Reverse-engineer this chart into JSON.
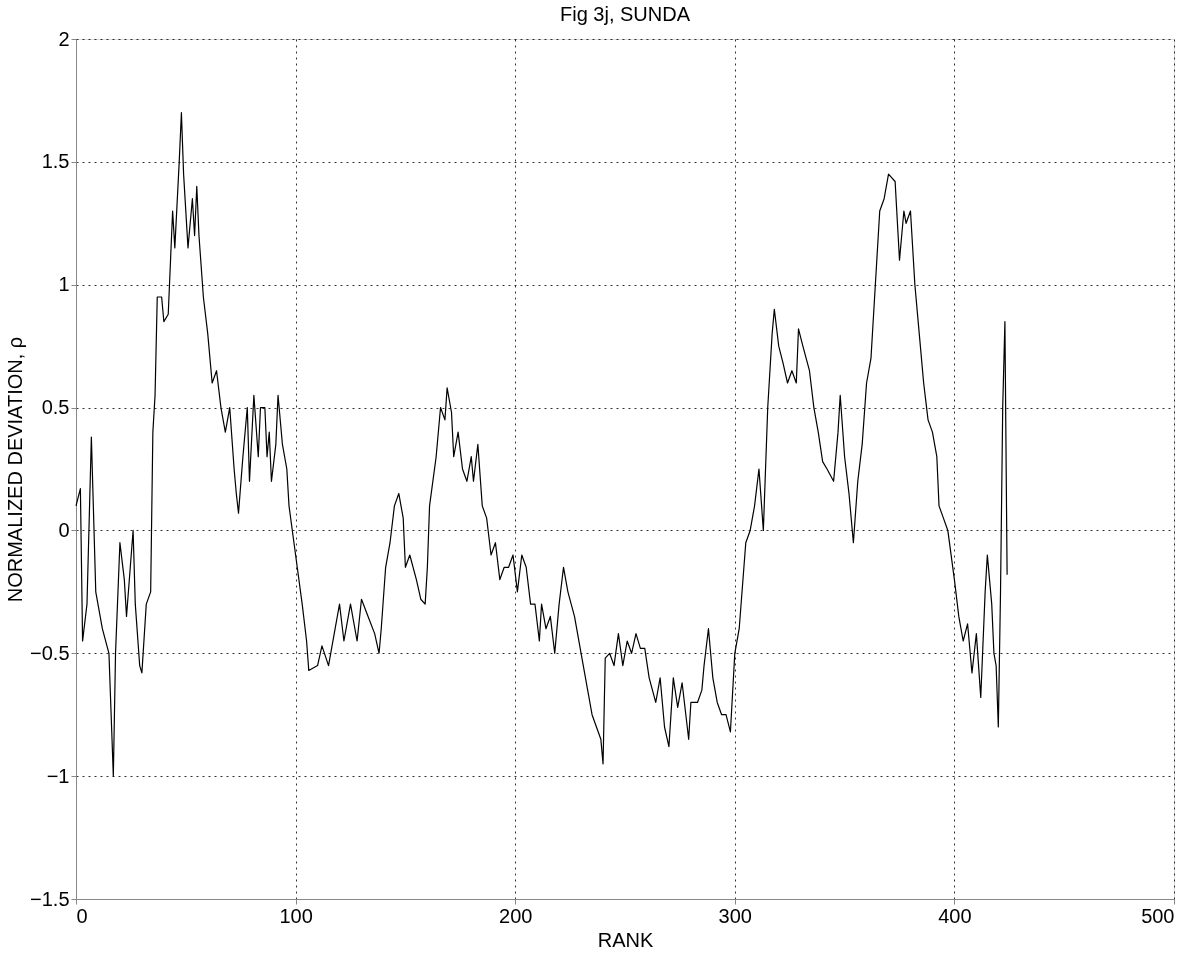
{
  "chart_data": {
    "type": "line",
    "title": "Fig 3j, SUNDA",
    "xlabel": "RANK",
    "ylabel": "NORMALIZED DEVIATION, ρ",
    "x": [
      0,
      2,
      3,
      5,
      7,
      9,
      12,
      15,
      17,
      18,
      20,
      22,
      23,
      26,
      27,
      29,
      30,
      32,
      34,
      35,
      36,
      37,
      39,
      40,
      42,
      44,
      45,
      47,
      48,
      49,
      51,
      53,
      54,
      55,
      56,
      58,
      60,
      62,
      64,
      66,
      68,
      70,
      72,
      73,
      74,
      76,
      78,
      79,
      81,
      83,
      84,
      86,
      87,
      88,
      89,
      91,
      92,
      94,
      96,
      97,
      100,
      103,
      105,
      106,
      110,
      112,
      115,
      118,
      120,
      122,
      125,
      128,
      130,
      133,
      136,
      138,
      139,
      141,
      143,
      145,
      147,
      149,
      150,
      152,
      155,
      157,
      159,
      160,
      161,
      164,
      166,
      168,
      169,
      171,
      172,
      174,
      176,
      178,
      180,
      181,
      183,
      185,
      187,
      189,
      191,
      193,
      195,
      197,
      199,
      201,
      203,
      205,
      207,
      209,
      211,
      212,
      214,
      216,
      218,
      220,
      222,
      224,
      227,
      231,
      235,
      239,
      240,
      241,
      243,
      245,
      247,
      249,
      251,
      253,
      255,
      257,
      259,
      261,
      264,
      266,
      268,
      270,
      272,
      274,
      276,
      279,
      280,
      283,
      285,
      286,
      288,
      290,
      292,
      294,
      296,
      298,
      300,
      302,
      305,
      307,
      309,
      311,
      313,
      315,
      317,
      318,
      320,
      322,
      324,
      326,
      328,
      329,
      331,
      334,
      336,
      338,
      340,
      342,
      345,
      347,
      348,
      350,
      352,
      354,
      356,
      358,
      360,
      362,
      364,
      366,
      368,
      370,
      373,
      375,
      377,
      378,
      380,
      382,
      384,
      386,
      388,
      390,
      392,
      393,
      395,
      397,
      400,
      402,
      404,
      406,
      408,
      410,
      412,
      414,
      415,
      417,
      418,
      419,
      420,
      421,
      422,
      423,
      424
    ],
    "series": [
      {
        "color": "#000000",
        "values": [
          0.1,
          0.17,
          -0.45,
          -0.3,
          0.38,
          -0.25,
          -0.4,
          -0.5,
          -1.0,
          -0.5,
          -0.05,
          -0.2,
          -0.35,
          0.0,
          -0.3,
          -0.55,
          -0.58,
          -0.3,
          -0.25,
          0.4,
          0.55,
          0.95,
          0.95,
          0.85,
          0.88,
          1.3,
          1.15,
          1.5,
          1.7,
          1.45,
          1.15,
          1.35,
          1.2,
          1.4,
          1.2,
          0.95,
          0.8,
          0.6,
          0.65,
          0.5,
          0.4,
          0.5,
          0.25,
          0.15,
          0.07,
          0.3,
          0.5,
          0.2,
          0.55,
          0.3,
          0.5,
          0.5,
          0.3,
          0.4,
          0.2,
          0.35,
          0.55,
          0.35,
          0.25,
          0.1,
          -0.1,
          -0.3,
          -0.45,
          -0.57,
          -0.55,
          -0.47,
          -0.55,
          -0.4,
          -0.3,
          -0.45,
          -0.3,
          -0.45,
          -0.28,
          -0.35,
          -0.42,
          -0.5,
          -0.4,
          -0.15,
          -0.05,
          0.1,
          0.15,
          0.05,
          -0.15,
          -0.1,
          -0.2,
          -0.28,
          -0.3,
          -0.15,
          0.1,
          0.3,
          0.5,
          0.45,
          0.58,
          0.48,
          0.3,
          0.4,
          0.25,
          0.2,
          0.3,
          0.2,
          0.35,
          0.1,
          0.05,
          -0.1,
          -0.05,
          -0.2,
          -0.15,
          -0.15,
          -0.1,
          -0.25,
          -0.1,
          -0.15,
          -0.3,
          -0.3,
          -0.45,
          -0.3,
          -0.4,
          -0.35,
          -0.5,
          -0.3,
          -0.15,
          -0.25,
          -0.35,
          -0.55,
          -0.75,
          -0.85,
          -0.95,
          -0.52,
          -0.5,
          -0.55,
          -0.42,
          -0.55,
          -0.45,
          -0.5,
          -0.42,
          -0.48,
          -0.48,
          -0.6,
          -0.7,
          -0.6,
          -0.8,
          -0.88,
          -0.6,
          -0.72,
          -0.62,
          -0.85,
          -0.7,
          -0.7,
          -0.65,
          -0.55,
          -0.4,
          -0.6,
          -0.7,
          -0.75,
          -0.75,
          -0.82,
          -0.5,
          -0.4,
          -0.05,
          0.0,
          0.1,
          0.25,
          0.0,
          0.5,
          0.8,
          0.9,
          0.75,
          0.68,
          0.6,
          0.65,
          0.6,
          0.82,
          0.75,
          0.65,
          0.5,
          0.4,
          0.28,
          0.25,
          0.2,
          0.4,
          0.55,
          0.3,
          0.15,
          -0.05,
          0.2,
          0.35,
          0.6,
          0.7,
          1.0,
          1.3,
          1.35,
          1.45,
          1.42,
          1.1,
          1.3,
          1.25,
          1.3,
          1.0,
          0.8,
          0.6,
          0.45,
          0.4,
          0.3,
          0.1,
          0.05,
          0.0,
          -0.2,
          -0.35,
          -0.45,
          -0.38,
          -0.58,
          -0.42,
          -0.68,
          -0.25,
          -0.1,
          -0.3,
          -0.5,
          -0.55,
          -0.8,
          -0.25,
          0.5,
          0.85,
          -0.18
        ]
      }
    ],
    "xlim": [
      0,
      500
    ],
    "xticks": [
      0,
      100,
      200,
      300,
      400,
      500
    ],
    "ylim": [
      -1.5,
      2
    ],
    "yticks": [
      -1.5,
      -1,
      -0.5,
      0,
      0.5,
      1,
      1.5,
      2
    ],
    "grid": true,
    "line_style": "solid",
    "marker": "none"
  }
}
